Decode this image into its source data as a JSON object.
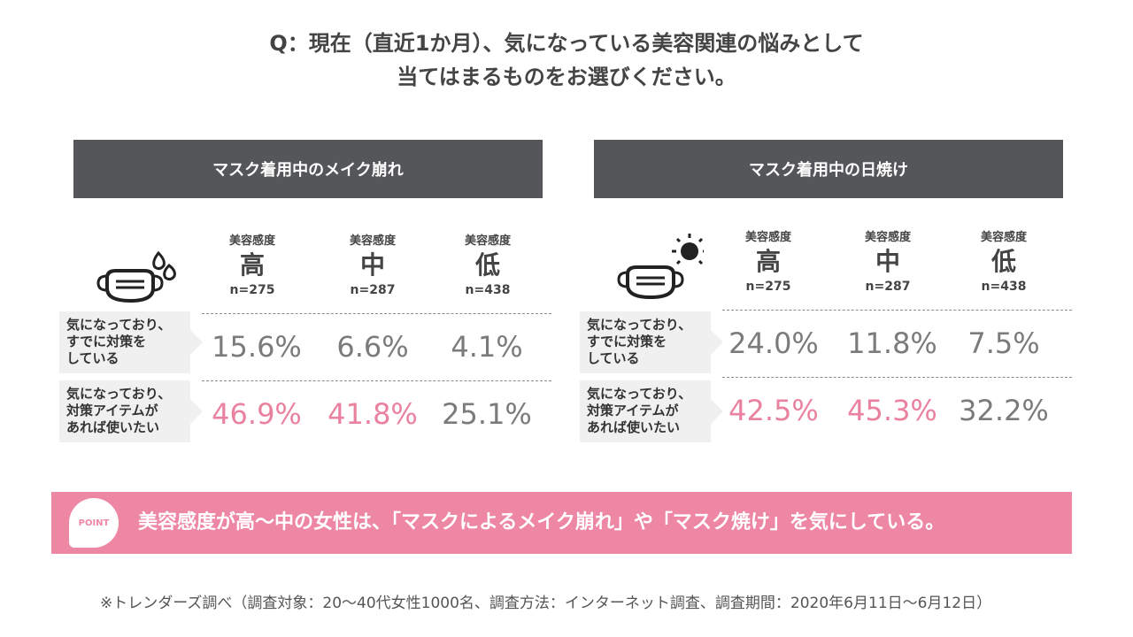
{
  "question": {
    "line1": "Q：現在（直近1か月）、気になっている美容関連の悩みとして",
    "line2": "当てはまるものをお選びください。"
  },
  "chart_data": [
    {
      "type": "table",
      "title": "マスク着用中のメイク崩れ",
      "columns": [
        {
          "label": "美容感度",
          "level": "高",
          "n": "n=275"
        },
        {
          "label": "美容感度",
          "level": "中",
          "n": "n=287"
        },
        {
          "label": "美容感度",
          "level": "低",
          "n": "n=438"
        }
      ],
      "rows": [
        {
          "label_lines": [
            "気になっており、",
            "すでに対策を",
            "している"
          ],
          "values": [
            "15.6%",
            "6.6%",
            "4.1%"
          ],
          "highlight": [
            false,
            false,
            false
          ]
        },
        {
          "label_lines": [
            "気になっており、",
            "対策アイテムが",
            "あれば使いたい"
          ],
          "values": [
            "46.9%",
            "41.8%",
            "25.1%"
          ],
          "highlight": [
            true,
            true,
            false
          ]
        }
      ]
    },
    {
      "type": "table",
      "title": "マスク着用中の日焼け",
      "columns": [
        {
          "label": "美容感度",
          "level": "高",
          "n": "n=275"
        },
        {
          "label": "美容感度",
          "level": "中",
          "n": "n=287"
        },
        {
          "label": "美容感度",
          "level": "低",
          "n": "n=438"
        }
      ],
      "rows": [
        {
          "label_lines": [
            "気になっており、",
            "すでに対策を",
            "している"
          ],
          "values": [
            "24.0%",
            "11.8%",
            "7.5%"
          ],
          "highlight": [
            false,
            false,
            false
          ]
        },
        {
          "label_lines": [
            "気になっており、",
            "対策アイテムが",
            "あれば使いたい"
          ],
          "values": [
            "42.5%",
            "45.3%",
            "32.2%"
          ],
          "highlight": [
            true,
            true,
            false
          ]
        }
      ]
    }
  ],
  "point": {
    "badge": "POINT",
    "text": "美容感度が高〜中の女性は、「マスクによるメイク崩れ」や「マスク焼け」を気にしている。"
  },
  "footnote": "※トレンダーズ調べ（調査対象：20〜40代女性1000名、調査方法：インターネット調査、調査期間：2020年6月11日〜6月12日）",
  "colors": {
    "header_bg": "#545659",
    "highlight": "#e9819f",
    "value": "#7b7b7b",
    "point_bg": "#ee87a4"
  },
  "icons": [
    "mask-sweat-icon",
    "mask-sun-icon"
  ]
}
